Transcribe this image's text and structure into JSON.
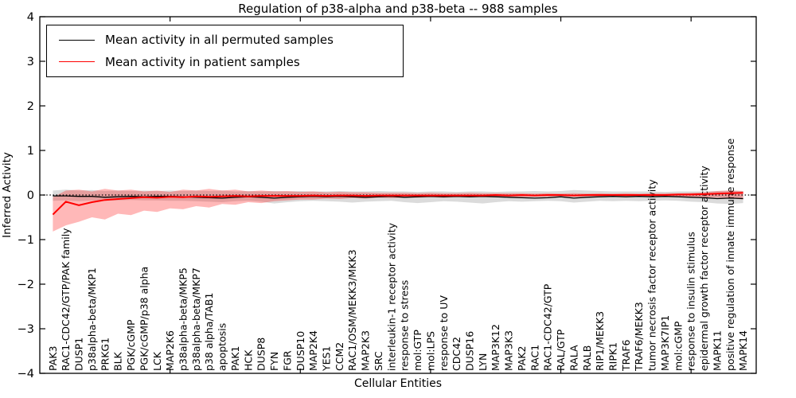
{
  "figure": {
    "title": "Regulation of p38-alpha and p38-beta -- 988 samples",
    "xlabel": "Cellular Entities",
    "ylabel": "Inferred Activity"
  },
  "legend": {
    "entries": [
      {
        "label": "Mean activity in all permuted samples",
        "color": "#000000"
      },
      {
        "label": "Mean activity in patient samples",
        "color": "#ff0000"
      }
    ]
  },
  "chart_data": {
    "type": "line",
    "title": "Regulation of p38-alpha and p38-beta -- 988 samples",
    "xlabel": "Cellular Entities",
    "ylabel": "Inferred Activity",
    "ylim": [
      -4,
      4
    ],
    "xlim": [
      0,
      55
    ],
    "grid": false,
    "legend_position": "upper left",
    "zero_reference_line": true,
    "yticks": [
      4,
      3,
      2,
      1,
      0,
      -1,
      -2,
      -3,
      -4
    ],
    "ytick_labels": [
      "4",
      "3",
      "2",
      "1",
      "0",
      "−1",
      "−2",
      "−3",
      "−4"
    ],
    "xticks_major": [
      10,
      20,
      30,
      40,
      50
    ],
    "categories": [
      "PAK3",
      "RAC1-CDC42/GTP/PAK family",
      "DUSP1",
      "p38alpha-beta/MKP1",
      "PRKG1",
      "BLK",
      "PGK/cGMP",
      "PGK/cGMP/p38 alpha",
      "LCK",
      "MAP2K6",
      "p38alpha-beta/MKP5",
      "p38alpha-beta/MKP7",
      "p38 alpha/TAB1",
      "apoptosis",
      "PAK1",
      "HCK",
      "DUSP8",
      "FYN",
      "FGR",
      "DUSP10",
      "MAP2K4",
      "YES1",
      "CCM2",
      "RAC1/OSM/MEKK3/MKK3",
      "MAP2K3",
      "SRC",
      "interleukin-1 receptor activity",
      "response to stress",
      "mol:GTP",
      "mol:LPS",
      "response to UV",
      "CDC42",
      "DUSP16",
      "LYN",
      "MAP3K12",
      "MAP3K3",
      "PAK2",
      "RAC1",
      "RAC1-CDC42/GTP",
      "RAL/GTP",
      "RALA",
      "RALB",
      "RIP1/MEKK3",
      "RIPK1",
      "TRAF6",
      "TRAF6/MEKK3",
      "tumor necrosis factor receptor activity",
      "MAP3K7IP1",
      "mol:cGMP",
      "response to insulin stimulus",
      "epidermal growth factor receptor activity",
      "MAPK11",
      "positive regulation of innate immune response",
      "MAPK14"
    ],
    "series": [
      {
        "name": "Mean activity in all permuted samples",
        "color": "#000000",
        "stroke_width": 1.3,
        "values": [
          -0.02,
          -0.02,
          -0.03,
          -0.03,
          -0.05,
          -0.04,
          -0.03,
          -0.04,
          -0.03,
          -0.03,
          -0.04,
          -0.05,
          -0.06,
          -0.07,
          -0.05,
          -0.04,
          -0.05,
          -0.07,
          -0.05,
          -0.04,
          -0.03,
          -0.04,
          -0.03,
          -0.04,
          -0.05,
          -0.04,
          -0.03,
          -0.05,
          -0.04,
          -0.03,
          -0.04,
          -0.03,
          -0.04,
          -0.03,
          -0.04,
          -0.05,
          -0.06,
          -0.07,
          -0.06,
          -0.04,
          -0.07,
          -0.05,
          -0.04,
          -0.03,
          -0.04,
          -0.03,
          -0.04,
          -0.03,
          -0.04,
          -0.05,
          -0.06,
          -0.08,
          -0.07,
          -0.08
        ]
      },
      {
        "name": "Mean activity in patient samples",
        "color": "#ff0000",
        "stroke_width": 2,
        "values": [
          -0.44,
          -0.15,
          -0.23,
          -0.16,
          -0.11,
          -0.09,
          -0.07,
          -0.05,
          -0.06,
          -0.04,
          -0.05,
          -0.03,
          -0.04,
          -0.03,
          -0.02,
          -0.03,
          -0.02,
          -0.02,
          -0.02,
          -0.02,
          -0.01,
          -0.02,
          -0.01,
          -0.01,
          -0.02,
          -0.01,
          -0.01,
          -0.01,
          -0.01,
          -0.01,
          -0.01,
          -0.01,
          -0.01,
          -0.01,
          0.0,
          -0.01,
          0.0,
          -0.01,
          0.0,
          0.0,
          -0.01,
          0.0,
          0.0,
          0.0,
          0.0,
          0.0,
          0.0,
          0.0,
          0.01,
          0.01,
          0.02,
          0.03,
          0.04,
          0.05
        ]
      }
    ],
    "bands": [
      {
        "name": "permuted-samples-range",
        "color": "#000000",
        "opacity": 0.14,
        "upper": [
          0.1,
          0.12,
          0.1,
          0.11,
          0.09,
          0.1,
          0.09,
          0.1,
          0.09,
          0.1,
          0.09,
          0.1,
          0.09,
          0.1,
          0.08,
          0.09,
          0.08,
          0.09,
          0.08,
          0.09,
          0.08,
          0.08,
          0.09,
          0.08,
          0.08,
          0.09,
          0.08,
          0.08,
          0.07,
          0.08,
          0.08,
          0.07,
          0.08,
          0.08,
          0.07,
          0.08,
          0.08,
          0.09,
          0.08,
          0.09,
          0.11,
          0.1,
          0.09,
          0.08,
          0.08,
          0.08,
          0.08,
          0.07,
          0.08,
          0.08,
          0.08,
          0.09,
          0.1,
          0.09
        ],
        "lower": [
          -0.13,
          -0.12,
          -0.14,
          -0.12,
          -0.13,
          -0.12,
          -0.11,
          -0.12,
          -0.12,
          -0.13,
          -0.13,
          -0.14,
          -0.15,
          -0.16,
          -0.14,
          -0.13,
          -0.15,
          -0.19,
          -0.16,
          -0.14,
          -0.13,
          -0.14,
          -0.15,
          -0.17,
          -0.15,
          -0.14,
          -0.13,
          -0.16,
          -0.18,
          -0.16,
          -0.14,
          -0.15,
          -0.17,
          -0.19,
          -0.16,
          -0.14,
          -0.15,
          -0.14,
          -0.13,
          -0.14,
          -0.17,
          -0.15,
          -0.13,
          -0.14,
          -0.13,
          -0.14,
          -0.13,
          -0.12,
          -0.13,
          -0.15,
          -0.16,
          -0.19,
          -0.2,
          -0.18
        ]
      },
      {
        "name": "patient-samples-range",
        "color": "#ff0000",
        "opacity": 0.28,
        "upper": [
          -0.05,
          0.1,
          0.12,
          0.08,
          0.14,
          0.1,
          0.12,
          0.08,
          0.1,
          0.07,
          0.12,
          0.1,
          0.14,
          0.1,
          0.12,
          0.08,
          0.1,
          0.08,
          0.09,
          0.07,
          0.08,
          0.06,
          0.07,
          0.06,
          0.06,
          0.05,
          0.05,
          0.05,
          0.04,
          0.05,
          0.04,
          0.04,
          0.05,
          0.04,
          0.04,
          0.04,
          0.04,
          0.03,
          0.04,
          0.03,
          0.04,
          0.03,
          0.04,
          0.03,
          0.04,
          0.03,
          0.04,
          0.04,
          0.04,
          0.05,
          0.06,
          0.09,
          0.1,
          0.09
        ],
        "lower": [
          -0.82,
          -0.68,
          -0.6,
          -0.5,
          -0.55,
          -0.42,
          -0.45,
          -0.35,
          -0.38,
          -0.3,
          -0.32,
          -0.25,
          -0.28,
          -0.2,
          -0.22,
          -0.16,
          -0.18,
          -0.14,
          -0.12,
          -0.1,
          -0.1,
          -0.08,
          -0.09,
          -0.07,
          -0.08,
          -0.06,
          -0.07,
          -0.06,
          -0.06,
          -0.05,
          -0.06,
          -0.05,
          -0.05,
          -0.05,
          -0.05,
          -0.04,
          -0.05,
          -0.04,
          -0.04,
          -0.04,
          -0.04,
          -0.04,
          -0.04,
          -0.04,
          -0.04,
          -0.04,
          -0.04,
          -0.04,
          -0.04,
          -0.04,
          -0.05,
          -0.06,
          -0.07,
          -0.1
        ]
      }
    ]
  }
}
